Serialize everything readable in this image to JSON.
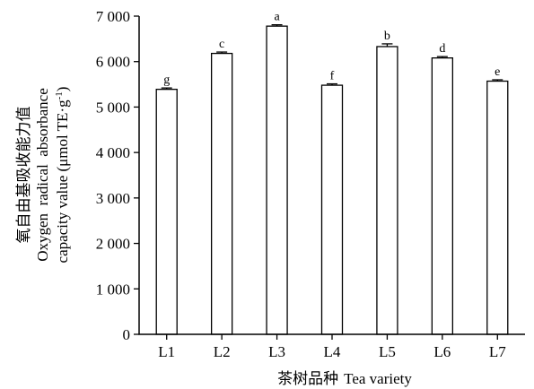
{
  "chart_data": {
    "type": "bar",
    "categories": [
      "L1",
      "L2",
      "L3",
      "L4",
      "L5",
      "L6",
      "L7"
    ],
    "values": [
      5390,
      6180,
      6780,
      5480,
      6330,
      6080,
      5570
    ],
    "errors": [
      30,
      30,
      30,
      30,
      60,
      30,
      30
    ],
    "significance": [
      "g",
      "c",
      "a",
      "f",
      "b",
      "d",
      "e"
    ],
    "ylim": [
      0,
      7000
    ],
    "yticks": [
      0,
      1000,
      2000,
      3000,
      4000,
      5000,
      6000,
      7000
    ],
    "ytick_labels": [
      "0",
      "1 000",
      "2 000",
      "3 000",
      "4 000",
      "5 000",
      "6 000",
      "7 000"
    ],
    "ylabel_cn": "氧自由基吸收能力值",
    "ylabel_en_1": "Oxygen  radical  absorbance",
    "ylabel_en_2": "capacity value (μmol TE·g",
    "ylabel_en_sup": "-1",
    "ylabel_en_close": ")",
    "xlabel_cn": "茶树品种",
    "xlabel_en": "Tea variety",
    "grid": false
  }
}
